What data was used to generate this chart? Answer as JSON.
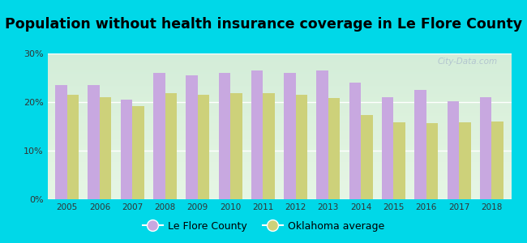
{
  "title": "Population without health insurance coverage in Le Flore County",
  "years": [
    2005,
    2006,
    2007,
    2008,
    2009,
    2010,
    2011,
    2012,
    2013,
    2014,
    2015,
    2016,
    2017,
    2018
  ],
  "le_flore": [
    23.5,
    23.5,
    20.5,
    26.0,
    25.5,
    26.0,
    26.5,
    26.0,
    26.5,
    24.0,
    21.0,
    22.5,
    20.2,
    21.0
  ],
  "oklahoma": [
    21.5,
    21.0,
    19.2,
    21.8,
    21.5,
    21.8,
    21.8,
    21.5,
    20.8,
    17.3,
    15.8,
    15.6,
    15.8,
    16.0
  ],
  "bar_color_leflore": "#c8a8e0",
  "bar_color_oklahoma": "#cdd17a",
  "background_outer": "#00d8e8",
  "background_inner_top": "#f0faf0",
  "background_inner_bottom": "#d8f0d8",
  "ylim": [
    0,
    30
  ],
  "yticks": [
    0,
    10,
    20,
    30
  ],
  "ytick_labels": [
    "0%",
    "10%",
    "20%",
    "30%"
  ],
  "legend_leflore": "Le Flore County",
  "legend_oklahoma": "Oklahoma average",
  "bar_width": 0.36,
  "title_fontsize": 12.5,
  "watermark": "City-Data.com"
}
